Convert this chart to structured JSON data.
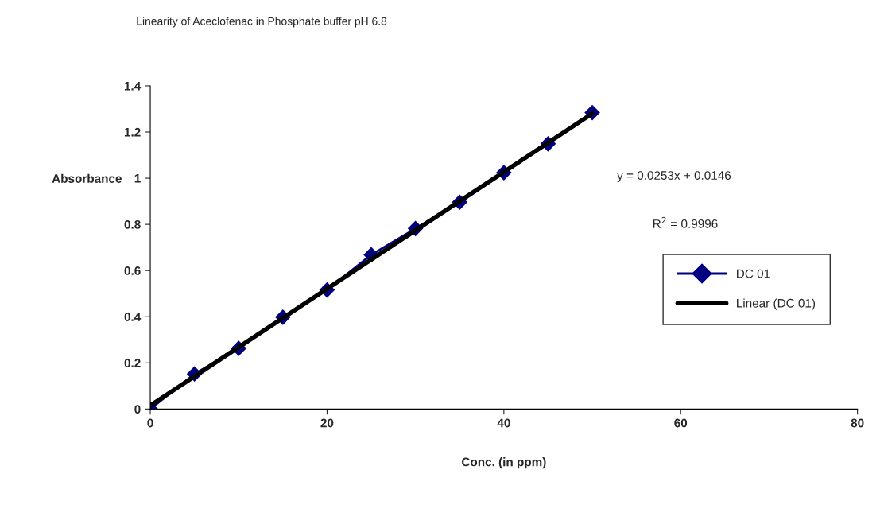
{
  "chart_data": {
    "type": "line",
    "title": "Linearity of Aceclofenac in Phosphate buffer pH 6.8",
    "xlabel": "Conc. (in ppm)",
    "ylabel": "Absorbance",
    "x": [
      0,
      5,
      10,
      15,
      20,
      25,
      30,
      35,
      40,
      45,
      50
    ],
    "series": [
      {
        "name": "DC 01",
        "color": "#000080",
        "marker": "diamond",
        "values": [
          0,
          0.152,
          0.263,
          0.398,
          0.516,
          0.668,
          0.782,
          0.896,
          1.024,
          1.149,
          1.284
        ]
      },
      {
        "name": "Linear (DC 01)",
        "color": "#000000",
        "x": [
          0,
          50
        ],
        "values": [
          0.015,
          1.28
        ]
      }
    ],
    "xlim": [
      0,
      80
    ],
    "xticks": [
      0,
      20,
      40,
      60,
      80
    ],
    "ylim": [
      0,
      1.4
    ],
    "yticks": [
      0,
      0.2,
      0.4,
      0.6,
      0.8,
      1,
      1.2,
      1.4
    ],
    "annotations": [
      "y = 0.0253x + 0.0146",
      "R$^{2}$ = 0.9996"
    ],
    "grid": false,
    "legend": "right"
  }
}
